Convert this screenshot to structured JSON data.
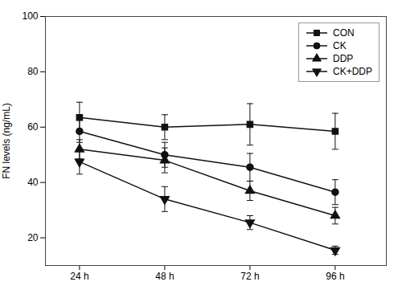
{
  "chart_data": {
    "type": "line",
    "ylabel": "FN levels (ng/mL)",
    "x": [
      1,
      2,
      3,
      4
    ],
    "xlim": [
      0.6,
      4.6
    ],
    "xticks": [
      {
        "value": 1,
        "label": "24 h"
      },
      {
        "value": 2,
        "label": "48 h"
      },
      {
        "value": 3,
        "label": "72 h"
      },
      {
        "value": 4,
        "label": "96 h"
      }
    ],
    "ylim": [
      10,
      100
    ],
    "yticks": [
      20,
      40,
      60,
      80,
      100
    ],
    "legend": "upper right",
    "series": [
      {
        "name": "CON",
        "color": "#111111",
        "marker": "square",
        "values": [
          63.5,
          60.0,
          61.0,
          58.5
        ],
        "errors": [
          5.5,
          4.5,
          7.5,
          6.5
        ]
      },
      {
        "name": "CK",
        "color": "#111111",
        "marker": "circle",
        "values": [
          58.5,
          50.0,
          45.5,
          36.5
        ],
        "errors": [
          4.0,
          4.5,
          5.0,
          4.5
        ]
      },
      {
        "name": "DDP",
        "color": "#111111",
        "marker": "triangle-up",
        "values": [
          52.0,
          48.0,
          37.0,
          28.0
        ],
        "errors": [
          3.5,
          4.5,
          3.5,
          3.0
        ]
      },
      {
        "name": "CK+DDP",
        "color": "#111111",
        "marker": "triangle-down",
        "values": [
          47.5,
          34.0,
          25.5,
          15.5
        ],
        "errors": [
          4.5,
          4.5,
          2.5,
          1.5
        ]
      }
    ]
  }
}
